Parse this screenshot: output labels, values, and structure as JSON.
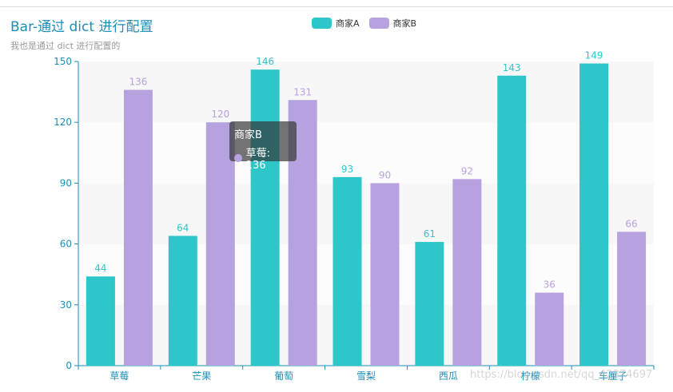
{
  "title": "Bar-通过 dict 进行配置",
  "subtitle": "我也是通过 dict 进行配置的",
  "watermark": "https://blog.csdn.net/qq_42374697",
  "colors": {
    "series_a": "#2ec7c9",
    "series_b": "#b6a2de",
    "axis": "#1b8fb7",
    "title": "#1b8fb7"
  },
  "legend": {
    "placement": "top-center",
    "items": [
      {
        "label": "商家A",
        "color": "#2ec7c9"
      },
      {
        "label": "商家B",
        "color": "#b6a2de"
      }
    ]
  },
  "tooltip": {
    "series": "商家B",
    "category": "草莓",
    "value": "136",
    "line": "草莓: 136",
    "color": "#b6a2de"
  },
  "chart_data": {
    "type": "bar",
    "title": "Bar-通过 dict 进行配置",
    "subtitle": "我也是通过 dict 进行配置的",
    "xlabel": "",
    "ylabel": "",
    "categories": [
      "草莓",
      "芒果",
      "葡萄",
      "雪梨",
      "西瓜",
      "柠檬",
      "车厘子"
    ],
    "series": [
      {
        "name": "商家A",
        "values": [
          44,
          64,
          146,
          93,
          61,
          143,
          149
        ]
      },
      {
        "name": "商家B",
        "values": [
          136,
          120,
          131,
          90,
          92,
          36,
          66
        ]
      }
    ],
    "ylim": [
      0,
      150
    ],
    "yticks": [
      0,
      30,
      60,
      90,
      120,
      150
    ],
    "grid": "horizontal split areas",
    "show_data_labels": true
  }
}
